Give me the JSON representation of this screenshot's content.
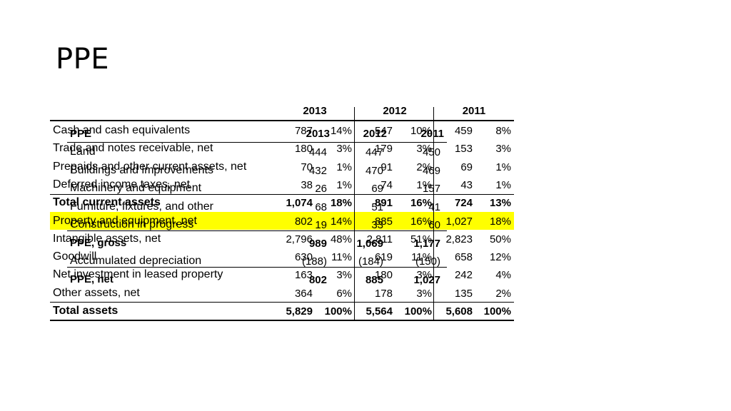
{
  "slide": {
    "title": "PPE"
  },
  "balance_sheet": {
    "years": [
      "2013",
      "2012",
      "2011"
    ],
    "rows": [
      {
        "label": "Cash and cash equivalents",
        "vals": [
          "787",
          "14%",
          "547",
          "10%",
          "459",
          "8%"
        ]
      },
      {
        "label": "Trade and notes receivable, net",
        "vals": [
          "180",
          "3%",
          "179",
          "3%",
          "153",
          "3%"
        ]
      },
      {
        "label": "Prepaids and other current assets, net",
        "vals": [
          "70",
          "1%",
          "91",
          "2%",
          "69",
          "1%"
        ]
      },
      {
        "label": "Deferred income taxes, net",
        "vals": [
          "38",
          "1%",
          "74",
          "1%",
          "43",
          "1%"
        ]
      },
      {
        "label": "Total current assets",
        "vals": [
          "1,074",
          "18%",
          "891",
          "16%",
          "724",
          "13%"
        ],
        "bold": true
      },
      {
        "label": "Property and equipment, net",
        "vals": [
          "802",
          "14%",
          "885",
          "16%",
          "1,027",
          "18%"
        ],
        "highlight": true
      },
      {
        "label": "Intangible assets, net",
        "vals": [
          "2,796",
          "48%",
          "2,811",
          "51%",
          "2,823",
          "50%"
        ]
      },
      {
        "label": "Goodwill",
        "vals": [
          "630",
          "11%",
          "619",
          "11%",
          "658",
          "12%"
        ]
      },
      {
        "label": "Net investment in leased property",
        "vals": [
          "163",
          "3%",
          "180",
          "3%",
          "242",
          "4%"
        ]
      },
      {
        "label": "Other assets, net",
        "vals": [
          "364",
          "6%",
          "178",
          "3%",
          "135",
          "2%"
        ]
      },
      {
        "label": "Total assets",
        "vals": [
          "5,829",
          "100%",
          "5,564",
          "100%",
          "5,608",
          "100%"
        ],
        "bold": true
      }
    ]
  },
  "ppe_table": {
    "title": "PPE",
    "years": [
      "2013",
      "2012",
      "2011"
    ],
    "rows": [
      {
        "label": "Land",
        "vals": [
          "444",
          "447",
          "450"
        ]
      },
      {
        "label": "Buildings and improvements",
        "vals": [
          "432",
          "470",
          "469"
        ]
      },
      {
        "label": "Machinery and equipment",
        "vals": [
          "26",
          "69",
          "157"
        ]
      },
      {
        "label": "Furniture, fixtures, and other",
        "vals": [
          "68",
          "51",
          "41"
        ]
      },
      {
        "label": "Construction in progress",
        "vals": [
          "19",
          "33",
          "60"
        ]
      },
      {
        "label": "PPE, gross",
        "vals": [
          "989",
          "1,069",
          "1,177"
        ],
        "bold": true
      },
      {
        "label": "Accumulated depreciation",
        "vals": [
          "(188)",
          "(184)",
          "(150)"
        ]
      },
      {
        "label": "PPE, net",
        "vals": [
          "802",
          "885",
          "1,027"
        ],
        "bold": true
      }
    ]
  },
  "colors": {
    "highlight": "#ffff00",
    "text": "#000000",
    "background": "#ffffff"
  }
}
